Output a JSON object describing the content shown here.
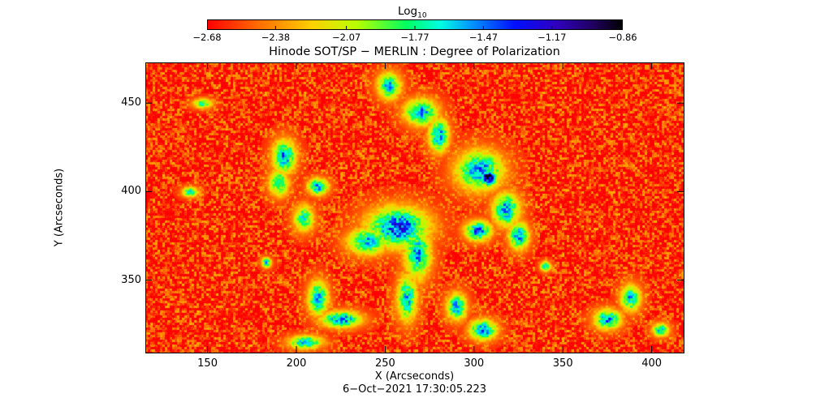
{
  "chart_data": {
    "type": "heatmap",
    "title": "Hinode SOT/SP − MERLIN : Degree of Polarization",
    "xlabel": "X (Arcseconds)",
    "ylabel": "Y (Arcseconds)",
    "footer": "6−Oct−2021 17:30:05.223",
    "xlim": [
      115,
      418
    ],
    "ylim": [
      309,
      473
    ],
    "x_ticks": [
      150,
      200,
      250,
      300,
      350,
      400
    ],
    "y_ticks": [
      350,
      400,
      450
    ],
    "x_tick_labels": [
      "150",
      "200",
      "250",
      "300",
      "350",
      "400"
    ],
    "y_tick_labels": [
      "350",
      "400",
      "450"
    ],
    "colorbar": {
      "label_base": "Log",
      "label_sub": "10",
      "min": -2.68,
      "max": -0.86,
      "tick_labels": [
        "−2.68",
        "−2.38",
        "−2.07",
        "−1.77",
        "−1.47",
        "−1.17",
        "−0.86"
      ],
      "tick_values": [
        -2.68,
        -2.38,
        -2.07,
        -1.77,
        -1.47,
        -1.17,
        -0.86
      ]
    },
    "background_level": -2.6,
    "features": [
      {
        "x": 308,
        "y": 408,
        "rx": 5,
        "ry": 5,
        "level": -0.9
      },
      {
        "x": 303,
        "y": 412,
        "rx": 14,
        "ry": 12,
        "level": -1.5
      },
      {
        "x": 257,
        "y": 380,
        "rx": 18,
        "ry": 12,
        "level": -1.35
      },
      {
        "x": 240,
        "y": 372,
        "rx": 12,
        "ry": 8,
        "level": -1.6
      },
      {
        "x": 268,
        "y": 365,
        "rx": 8,
        "ry": 15,
        "level": -1.55
      },
      {
        "x": 262,
        "y": 340,
        "rx": 6,
        "ry": 14,
        "level": -1.6
      },
      {
        "x": 252,
        "y": 460,
        "rx": 7,
        "ry": 8,
        "level": -1.6
      },
      {
        "x": 270,
        "y": 445,
        "rx": 10,
        "ry": 8,
        "level": -1.55
      },
      {
        "x": 280,
        "y": 432,
        "rx": 6,
        "ry": 10,
        "level": -1.5
      },
      {
        "x": 193,
        "y": 420,
        "rx": 7,
        "ry": 10,
        "level": -1.5
      },
      {
        "x": 190,
        "y": 405,
        "rx": 6,
        "ry": 8,
        "level": -1.7
      },
      {
        "x": 212,
        "y": 403,
        "rx": 6,
        "ry": 5,
        "level": -1.5
      },
      {
        "x": 204,
        "y": 385,
        "rx": 6,
        "ry": 8,
        "level": -1.7
      },
      {
        "x": 318,
        "y": 390,
        "rx": 8,
        "ry": 10,
        "level": -1.5
      },
      {
        "x": 302,
        "y": 378,
        "rx": 8,
        "ry": 6,
        "level": -1.45
      },
      {
        "x": 325,
        "y": 375,
        "rx": 6,
        "ry": 8,
        "level": -1.5
      },
      {
        "x": 212,
        "y": 340,
        "rx": 6,
        "ry": 10,
        "level": -1.5
      },
      {
        "x": 225,
        "y": 328,
        "rx": 12,
        "ry": 5,
        "level": -1.45
      },
      {
        "x": 205,
        "y": 315,
        "rx": 10,
        "ry": 4,
        "level": -1.55
      },
      {
        "x": 290,
        "y": 335,
        "rx": 6,
        "ry": 8,
        "level": -1.55
      },
      {
        "x": 305,
        "y": 322,
        "rx": 8,
        "ry": 6,
        "level": -1.45
      },
      {
        "x": 375,
        "y": 328,
        "rx": 8,
        "ry": 6,
        "level": -1.5
      },
      {
        "x": 388,
        "y": 340,
        "rx": 6,
        "ry": 8,
        "level": -1.6
      },
      {
        "x": 405,
        "y": 322,
        "rx": 5,
        "ry": 4,
        "level": -1.6
      },
      {
        "x": 140,
        "y": 400,
        "rx": 5,
        "ry": 3,
        "level": -1.7
      },
      {
        "x": 147,
        "y": 450,
        "rx": 6,
        "ry": 3,
        "level": -1.8
      },
      {
        "x": 183,
        "y": 360,
        "rx": 3,
        "ry": 3,
        "level": -1.6
      },
      {
        "x": 340,
        "y": 358,
        "rx": 3,
        "ry": 3,
        "level": -1.6
      }
    ]
  }
}
